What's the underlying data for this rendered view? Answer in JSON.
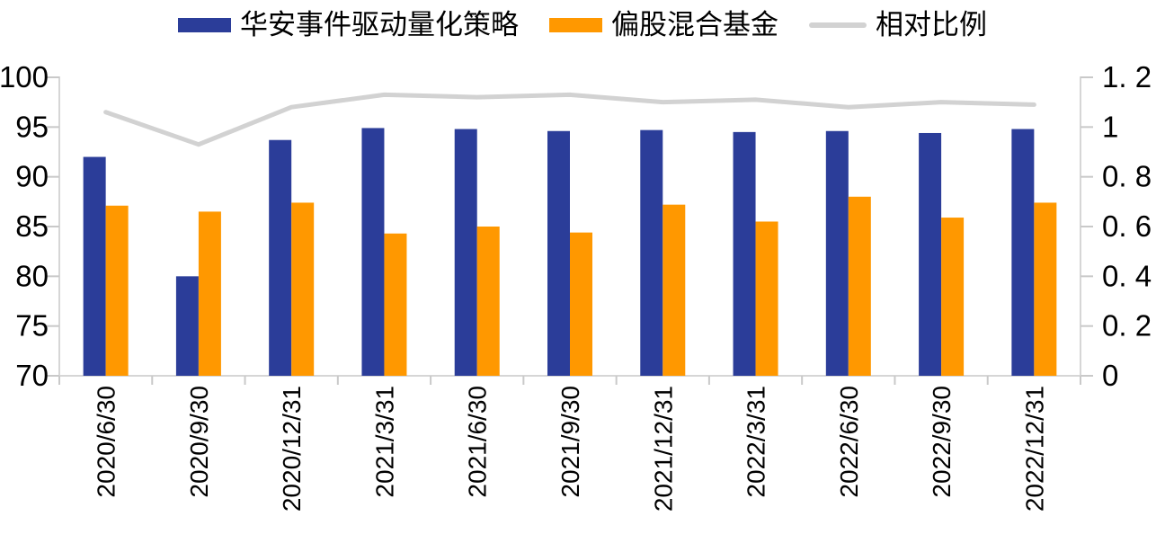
{
  "legend": {
    "items": [
      {
        "label": "华安事件驱动量化策略",
        "swatch": "bar",
        "color": "#2B3D99"
      },
      {
        "label": "偏股混合基金",
        "swatch": "bar",
        "color": "#FF9800"
      },
      {
        "label": "相对比例",
        "swatch": "line",
        "color": "#D2D2D2"
      }
    ]
  },
  "chart_data": {
    "type": "bar",
    "subtype": "grouped-bars-with-line",
    "title": "",
    "xlabel": "",
    "ylabel": "",
    "grid": false,
    "legend_position": "top",
    "categories": [
      "2020/6/30",
      "2020/9/30",
      "2020/12/31",
      "2021/3/31",
      "2021/6/30",
      "2021/9/30",
      "2021/12/31",
      "2022/3/31",
      "2022/6/30",
      "2022/9/30",
      "2022/12/31"
    ],
    "series": [
      {
        "name": "华安事件驱动量化策略",
        "type": "bar",
        "axis": "left",
        "color": "#2B3D99",
        "values": [
          92.0,
          80.0,
          93.7,
          94.9,
          94.8,
          94.6,
          94.7,
          94.5,
          94.6,
          94.4,
          94.8
        ]
      },
      {
        "name": "偏股混合基金",
        "type": "bar",
        "axis": "left",
        "color": "#FF9800",
        "values": [
          87.1,
          86.5,
          87.4,
          84.3,
          85.0,
          84.4,
          87.2,
          85.5,
          88.0,
          85.9,
          87.4
        ]
      },
      {
        "name": "相对比例",
        "type": "line",
        "axis": "right",
        "color": "#D2D2D2",
        "values": [
          1.06,
          0.93,
          1.08,
          1.13,
          1.12,
          1.13,
          1.1,
          1.11,
          1.08,
          1.1,
          1.09
        ]
      }
    ],
    "left_axis": {
      "min": 70,
      "max": 100,
      "step": 5,
      "tick_labels": [
        "100",
        "95",
        "90",
        "85",
        "80",
        "75",
        "70"
      ]
    },
    "right_axis": {
      "min": 0,
      "max": 1.2,
      "step": 0.2,
      "tick_labels": [
        "1. 2",
        "1",
        "0. 8",
        "0. 6",
        "0. 4",
        "0. 2",
        "0"
      ]
    }
  },
  "colors": {
    "axis": "#D6D6D6",
    "tick": "#C9C9C9",
    "text": "#000000",
    "background": "#FFFFFF"
  }
}
